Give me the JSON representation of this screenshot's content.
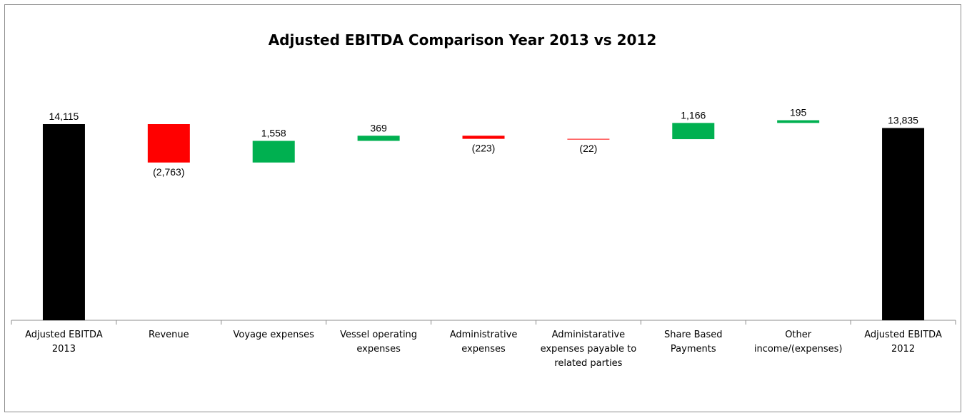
{
  "chart_data": {
    "type": "waterfall",
    "title": "Adjusted EBITDA Comparison Year 2013 vs 2012",
    "categories": [
      [
        "Adjusted EBITDA",
        "2013"
      ],
      [
        "Revenue"
      ],
      [
        "Voyage expenses"
      ],
      [
        "Vessel operating",
        "expenses"
      ],
      [
        "Administrative",
        "expenses"
      ],
      [
        "Administarative",
        "expenses payable to",
        "related parties"
      ],
      [
        "Share Based",
        "Payments"
      ],
      [
        "Other",
        "income/(expenses)"
      ],
      [
        "Adjusted EBITDA",
        "2012"
      ]
    ],
    "values": [
      14115,
      -2763,
      1558,
      369,
      -223,
      -22,
      1166,
      195,
      13835
    ],
    "value_labels": [
      "14,115",
      "(2,763)",
      "1,558",
      "369",
      "(223)",
      "(22)",
      "1,166",
      "195",
      "13,835"
    ],
    "bar_kinds": [
      "total",
      "change",
      "change",
      "change",
      "change",
      "change",
      "change",
      "change",
      "total"
    ],
    "colors": {
      "total": "#000000",
      "increase": "#00b050",
      "decrease": "#ff0000",
      "axis": "#8c8c8c"
    },
    "ylim": [
      0,
      15700
    ],
    "xlabel": "",
    "ylabel": "",
    "grid": false,
    "legend": "none"
  }
}
